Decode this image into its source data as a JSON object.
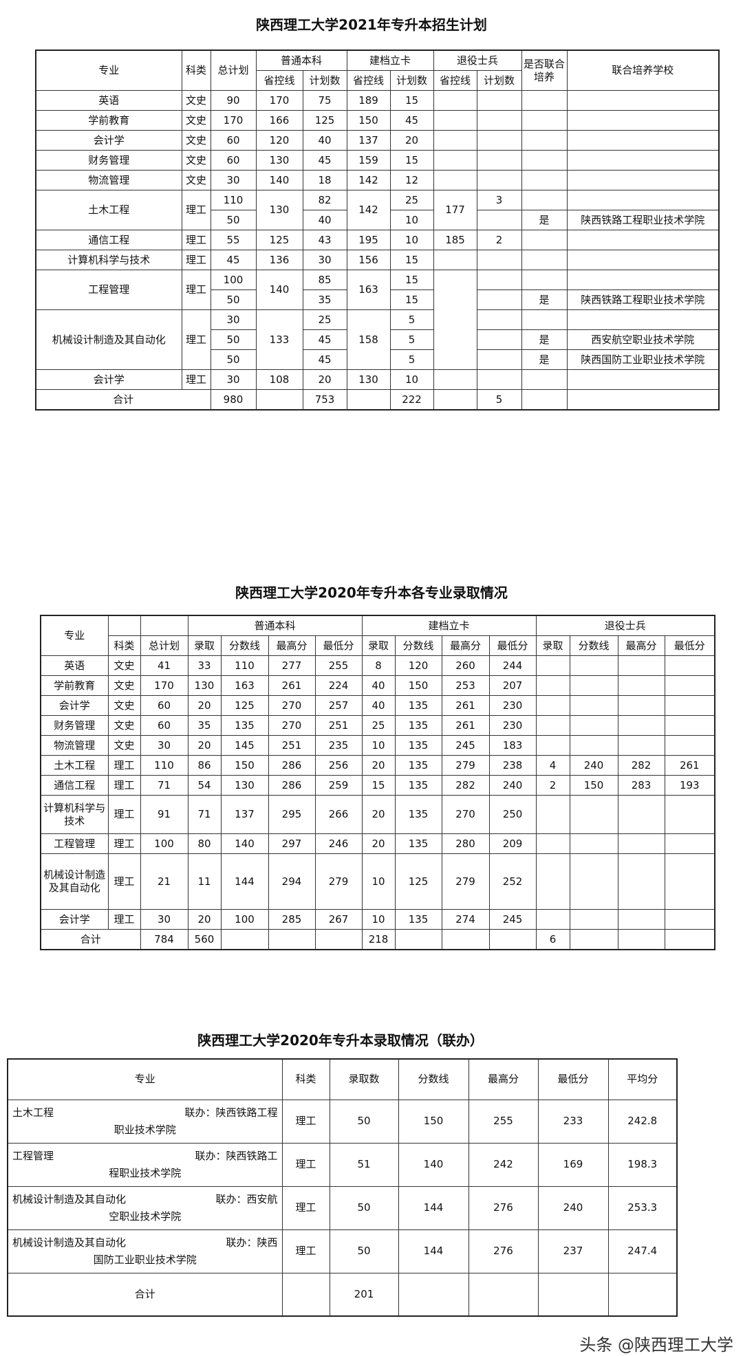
{
  "table1": {
    "title": "陕西理工大学2021年专升本招生计划",
    "rows": [
      [
        "专业",
        "科类",
        "总计划",
        "普通本科",
        "建档立卡",
        "退役士兵",
        "是否联合培养",
        "联合培养学校"
      ],
      [
        "省控线",
        "计划数",
        "省控线",
        "计划数",
        "省控线",
        "计划数"
      ],
      [
        "英语",
        "文史",
        "90",
        "170",
        "75",
        "189",
        "15",
        "",
        "",
        "",
        ""
      ],
      [
        "学前教育",
        "文史",
        "170",
        "166",
        "125",
        "150",
        "45",
        "",
        "",
        "",
        ""
      ],
      [
        "会计学",
        "文史",
        "60",
        "120",
        "40",
        "137",
        "20",
        "",
        "",
        "",
        ""
      ],
      [
        "财务管理",
        "文史",
        "60",
        "130",
        "45",
        "159",
        "15",
        "",
        "",
        "",
        ""
      ],
      [
        "物流管理",
        "文史",
        "30",
        "140",
        "18",
        "142",
        "12",
        "",
        "",
        "",
        ""
      ],
      [
        "土木工程",
        "理工",
        "110",
        "130",
        "82",
        "142",
        "25",
        "177",
        "3",
        "",
        ""
      ],
      [
        "50",
        "40",
        "10",
        "",
        "是",
        "陕西铁路工程职业技术学院"
      ],
      [
        "通信工程",
        "理工",
        "55",
        "125",
        "43",
        "195",
        "10",
        "185",
        "2",
        "",
        ""
      ],
      [
        "计算机科学与技术",
        "理工",
        "45",
        "136",
        "30",
        "156",
        "15",
        "",
        "",
        "",
        ""
      ],
      [
        "工程管理",
        "理工",
        "100",
        "140",
        "85",
        "163",
        "15",
        "",
        "",
        "",
        ""
      ],
      [
        "50",
        "35",
        "15",
        "",
        "是",
        "陕西铁路工程职业技术学院"
      ],
      [
        "机械设计制造及其自动化",
        "理工",
        "30",
        "133",
        "25",
        "158",
        "5",
        "",
        "",
        ""
      ],
      [
        "50",
        "45",
        "5",
        "",
        "是",
        "西安航空职业技术学院"
      ],
      [
        "50",
        "45",
        "5",
        "",
        "是",
        "陕西国防工业职业技术学院"
      ],
      [
        "会计学",
        "理工",
        "30",
        "108",
        "20",
        "130",
        "10",
        "",
        "",
        "",
        ""
      ],
      [
        "合计",
        "980",
        "",
        "753",
        "",
        "222",
        "",
        "5",
        "",
        ""
      ]
    ]
  },
  "table2": {
    "title": "陕西理工大学2020年专升本各专业录取情况",
    "rows": [
      [
        "专业",
        "",
        "",
        "普通本科",
        "建档立卡",
        "退役士兵"
      ],
      [
        "科类",
        "总计划",
        "录取",
        "分数线",
        "最高分",
        "最低分",
        "录取",
        "分数线",
        "最高分",
        "最低分",
        "录取",
        "分数线",
        "最高分",
        "最低分"
      ],
      [
        "英语",
        "文史",
        "41",
        "33",
        "110",
        "277",
        "255",
        "8",
        "120",
        "260",
        "244",
        "",
        "",
        "",
        ""
      ],
      [
        "学前教育",
        "文史",
        "170",
        "130",
        "163",
        "261",
        "224",
        "40",
        "150",
        "253",
        "207",
        "",
        "",
        "",
        ""
      ],
      [
        "会计学",
        "文史",
        "60",
        "20",
        "125",
        "270",
        "257",
        "40",
        "135",
        "261",
        "230",
        "",
        "",
        "",
        ""
      ],
      [
        "财务管理",
        "文史",
        "60",
        "35",
        "135",
        "270",
        "251",
        "25",
        "135",
        "261",
        "230",
        "",
        "",
        "",
        ""
      ],
      [
        "物流管理",
        "文史",
        "30",
        "20",
        "145",
        "251",
        "235",
        "10",
        "135",
        "245",
        "183",
        "",
        "",
        "",
        ""
      ],
      [
        "土木工程",
        "理工",
        "110",
        "86",
        "150",
        "286",
        "256",
        "20",
        "135",
        "279",
        "238",
        "4",
        "240",
        "282",
        "261"
      ],
      [
        "通信工程",
        "理工",
        "71",
        "54",
        "130",
        "286",
        "259",
        "15",
        "135",
        "282",
        "240",
        "2",
        "150",
        "283",
        "193"
      ],
      [
        "计算机科学与技术",
        "理工",
        "91",
        "71",
        "137",
        "295",
        "266",
        "20",
        "135",
        "270",
        "250",
        "",
        "",
        "",
        ""
      ],
      [
        "工程管理",
        "理工",
        "100",
        "80",
        "140",
        "297",
        "246",
        "20",
        "135",
        "280",
        "209",
        "",
        "",
        "",
        ""
      ],
      [
        "机械设计制造及其自动化",
        "理工",
        "21",
        "11",
        "144",
        "294",
        "279",
        "10",
        "125",
        "279",
        "252",
        "",
        "",
        "",
        ""
      ],
      [
        "会计学",
        "理工",
        "30",
        "20",
        "100",
        "285",
        "267",
        "10",
        "135",
        "274",
        "245",
        "",
        "",
        "",
        ""
      ],
      [
        "合计",
        "784",
        "560",
        "",
        "",
        "",
        "218",
        "",
        "",
        "",
        "6",
        "",
        "",
        ""
      ]
    ]
  },
  "table3": {
    "title": "陕西理工大学2020年专升本录取情况（联办）",
    "headers": [
      "专业",
      "科类",
      "录取数",
      "分数线",
      "最高分",
      "最低分",
      "平均分"
    ],
    "rows": [
      {
        "name": "土木工程",
        "joint_a": "联办：陕西铁路工程",
        "joint_b": "职业技术学院",
        "cells": [
          "理工",
          "50",
          "150",
          "255",
          "233",
          "242.8"
        ]
      },
      {
        "name": "工程管理",
        "joint_a": "联办：陕西铁路工",
        "joint_b": "程职业技术学院",
        "cells": [
          "理工",
          "51",
          "140",
          "242",
          "169",
          "198.3"
        ]
      },
      {
        "name": "机械设计制造及其自动化",
        "joint_a": "联办：西安航",
        "joint_b": "空职业技术学院",
        "cells": [
          "理工",
          "50",
          "144",
          "276",
          "240",
          "253.3"
        ]
      },
      {
        "name": "机械设计制造及其自动化",
        "joint_a": "联办：陕西",
        "joint_b": "国防工业职业技术学院",
        "cells": [
          "理工",
          "50",
          "144",
          "276",
          "237",
          "247.4"
        ]
      }
    ],
    "total": {
      "label": "合计",
      "cells": [
        "",
        "201",
        "",
        "",
        "",
        ""
      ]
    }
  },
  "watermark": "头条 @陕西理工大学"
}
